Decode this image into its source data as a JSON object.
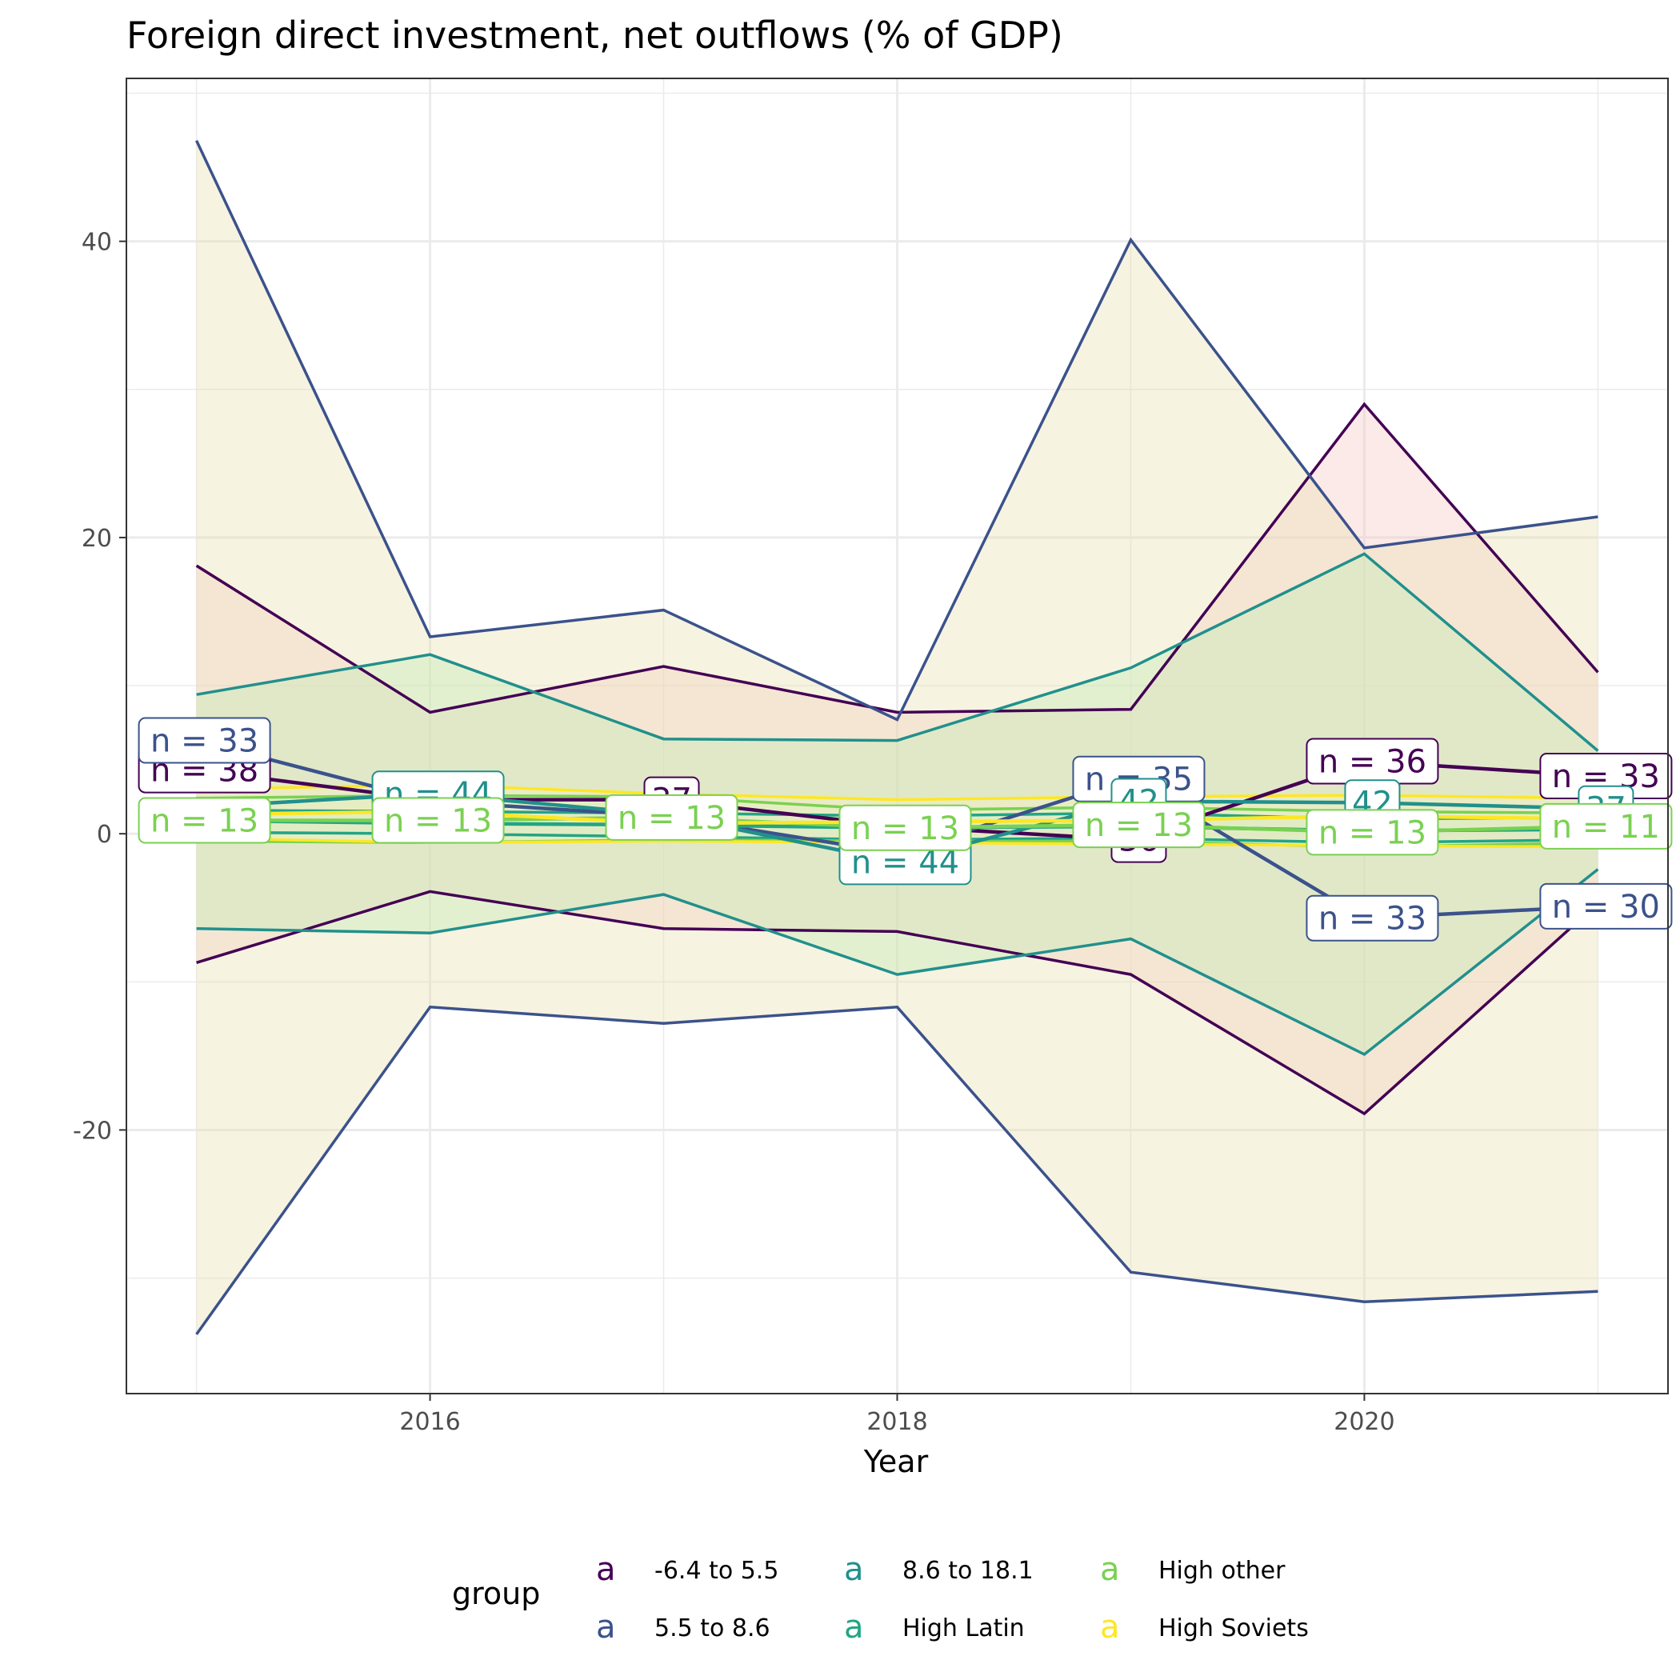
{
  "chart_data": {
    "type": "line",
    "title": "Foreign direct investment, net outflows (% of GDP)",
    "xlabel": "Year",
    "ylabel": "",
    "x": [
      2015,
      2016,
      2017,
      2018,
      2019,
      2020,
      2021
    ],
    "xticks": [
      2016,
      2018,
      2020
    ],
    "yticks": [
      -20,
      0,
      20,
      40
    ],
    "ylim": [
      -37.8,
      51.0
    ],
    "xlim": [
      2014.7,
      2021.3
    ],
    "grid": true,
    "legend_title": "group",
    "legend_position": "bottom",
    "legend_glyph": "a",
    "series": [
      {
        "name": "-6.4 to 5.5",
        "color": "#440154",
        "fill": "#f4c7c3",
        "upper": [
          18.1,
          8.2,
          11.3,
          8.2,
          8.4,
          29.0,
          10.9
        ],
        "mean": [
          4.3,
          2.3,
          2.3,
          0.5,
          -0.4,
          4.9,
          3.9
        ],
        "lower": [
          -8.7,
          -3.9,
          -6.4,
          -6.6,
          -9.5,
          -18.9,
          -4.7
        ],
        "n": [
          38,
          44,
          37,
          44,
          36,
          36,
          33
        ],
        "n_label_shown": [
          "n = 38",
          "",
          "37",
          "",
          "36",
          "n = 36",
          "n = 33"
        ]
      },
      {
        "name": "5.5 to 8.6",
        "color": "#3b528b",
        "fill": "#e9e0b0",
        "upper": [
          46.8,
          13.3,
          15.1,
          7.7,
          40.1,
          19.3,
          21.4
        ],
        "mean": [
          6.3,
          2.2,
          1.2,
          -1.3,
          3.7,
          -5.7,
          -4.9
        ],
        "lower": [
          -33.8,
          -11.7,
          -12.8,
          -11.7,
          -29.6,
          -31.6,
          -30.9
        ],
        "n": [
          33,
          44,
          37,
          44,
          35,
          33,
          30
        ],
        "n_label_shown": [
          "n = 33",
          "",
          "",
          "",
          "n = 35",
          "n = 33",
          "n = 30"
        ]
      },
      {
        "name": "8.6 to 18.1",
        "color": "#21908c",
        "fill": "#c2ecb6",
        "upper": [
          9.4,
          12.1,
          6.4,
          6.3,
          11.2,
          18.9,
          5.6
        ],
        "mean": [
          1.8,
          2.7,
          1.3,
          -1.9,
          2.2,
          2.1,
          1.7
        ],
        "lower": [
          -6.4,
          -6.7,
          -4.1,
          -9.5,
          -7.1,
          -14.9,
          -2.4
        ],
        "n": [
          38,
          44,
          37,
          44,
          42,
          42,
          37
        ],
        "n_label_shown": [
          "",
          "n = 44",
          "",
          "n = 44",
          "42",
          "42",
          "37"
        ]
      },
      {
        "name": "High Latin",
        "color": "#21a585",
        "fill": "#bfe0d0",
        "upper": [
          1.6,
          1.5,
          1.4,
          1.2,
          1.4,
          1.0,
          1.1
        ],
        "mean": [
          0.9,
          0.7,
          0.6,
          0.4,
          0.5,
          0.2,
          0.3
        ],
        "lower": [
          0.1,
          0.0,
          -0.2,
          -0.4,
          -0.3,
          -0.6,
          -0.4
        ],
        "n": [
          13,
          13,
          13,
          13,
          13,
          13,
          11
        ],
        "n_label_shown": [
          "",
          "",
          "",
          "",
          "",
          "",
          ""
        ]
      },
      {
        "name": "High other",
        "color": "#7ad151",
        "fill": "#d9efc0",
        "upper": [
          2.4,
          2.6,
          2.5,
          1.6,
          1.8,
          1.5,
          1.4
        ],
        "mean": [
          0.9,
          0.9,
          1.1,
          0.4,
          0.6,
          0.1,
          0.5
        ],
        "lower": [
          -0.5,
          -0.6,
          -0.4,
          -0.5,
          -0.5,
          -0.9,
          -0.6
        ],
        "n": [
          13,
          13,
          13,
          13,
          13,
          13,
          11
        ],
        "n_label_shown": [
          "n = 13",
          "n = 13",
          "n = 13",
          "n = 13",
          "n = 13",
          "n = 13",
          "n = 11"
        ]
      },
      {
        "name": "High Soviets",
        "color": "#fde725",
        "fill": "#f6f1c0",
        "upper": [
          3.0,
          3.3,
          2.7,
          2.3,
          2.5,
          2.6,
          2.4
        ],
        "mean": [
          1.3,
          1.5,
          0.7,
          0.8,
          0.9,
          1.2,
          1.0
        ],
        "lower": [
          -0.3,
          -0.6,
          -0.5,
          -0.6,
          -0.7,
          -0.8,
          -0.9
        ],
        "n": [
          13,
          13,
          13,
          13,
          13,
          13,
          11
        ],
        "n_label_shown": [
          "",
          "",
          "",
          "",
          "",
          "",
          ""
        ]
      }
    ]
  }
}
